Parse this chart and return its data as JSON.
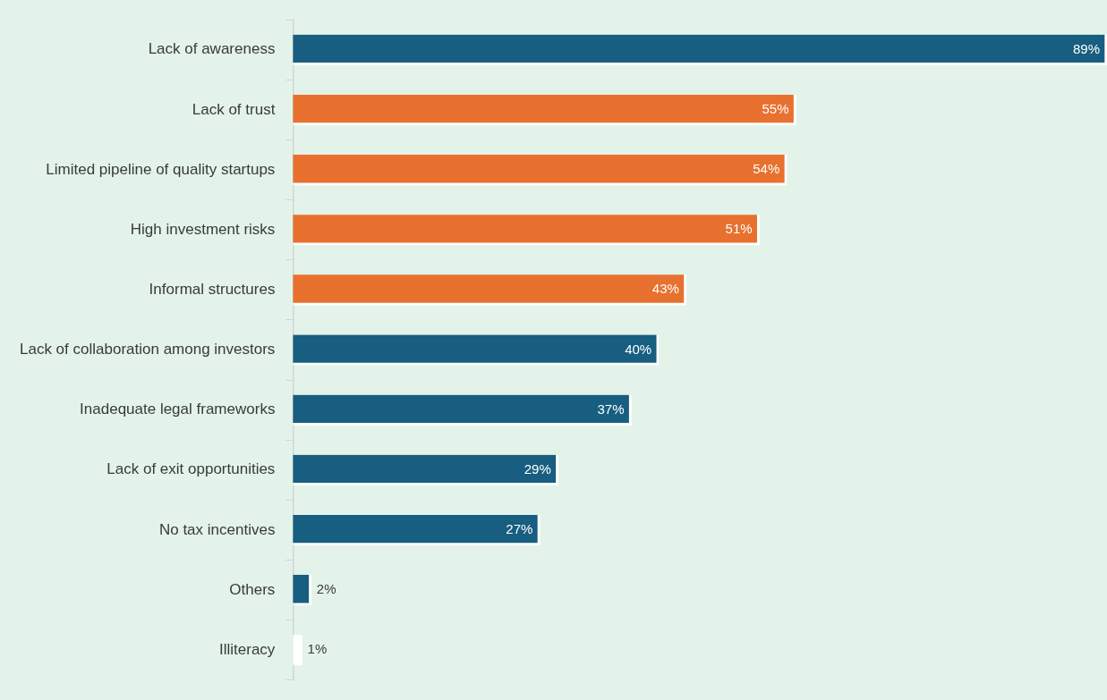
{
  "chart_data": {
    "type": "bar",
    "orientation": "horizontal",
    "categories": [
      "Lack of awareness",
      "Lack of trust",
      "Limited pipeline of quality startups",
      "High investment risks",
      "Informal structures",
      "Lack of collaboration among investors",
      "Inadequate legal frameworks",
      "Lack of exit opportunities",
      "No tax incentives",
      "Others",
      "Illiteracy"
    ],
    "values": [
      89,
      55,
      54,
      51,
      43,
      40,
      37,
      29,
      27,
      2,
      1
    ],
    "colors": [
      "#175e80",
      "#e8712f",
      "#e8712f",
      "#e8712f",
      "#e8712f",
      "#175e80",
      "#175e80",
      "#175e80",
      "#175e80",
      "#175e80",
      "#ffffff"
    ],
    "value_labels": [
      "89%",
      "55%",
      "54%",
      "51%",
      "43%",
      "40%",
      "37%",
      "29%",
      "27%",
      "2%",
      "1%"
    ],
    "xlim": [
      0,
      89
    ],
    "tick_labels": "y"
  }
}
